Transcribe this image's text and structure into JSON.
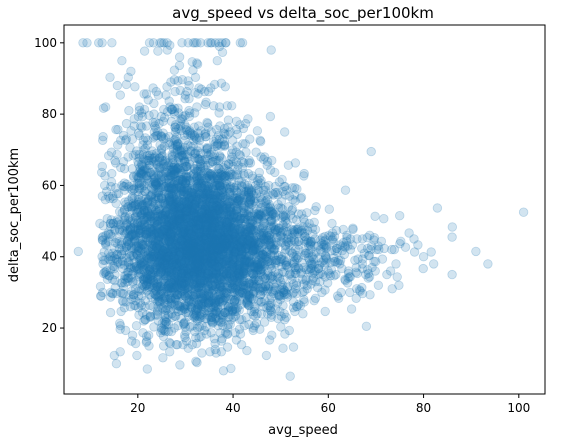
{
  "chart_data": {
    "type": "scatter",
    "title": "avg_speed vs delta_soc_per100km",
    "xlabel": "avg_speed",
    "ylabel": "delta_soc_per100km",
    "xlim": [
      4.5,
      105.5
    ],
    "ylim": [
      1.5,
      105
    ],
    "xticks": [
      20,
      40,
      60,
      80,
      100
    ],
    "yticks": [
      20,
      40,
      60,
      80,
      100
    ],
    "grid": false,
    "marker_color": "#1f77b4",
    "marker_alpha": 0.2,
    "cluster": {
      "n_points": 5000,
      "center": [
        33,
        43
      ],
      "note_values_are_estimates": true
    },
    "notable_points": [
      {
        "x": 101,
        "y": 52.5
      },
      {
        "x": 93.5,
        "y": 38
      },
      {
        "x": 91,
        "y": 41.5
      },
      {
        "x": 86,
        "y": 45.5
      },
      {
        "x": 86,
        "y": 35
      },
      {
        "x": 7.5,
        "y": 41.5
      },
      {
        "x": 8.5,
        "y": 100
      },
      {
        "x": 12.5,
        "y": 100
      },
      {
        "x": 25,
        "y": 100
      },
      {
        "x": 32,
        "y": 100
      },
      {
        "x": 37,
        "y": 100
      },
      {
        "x": 42,
        "y": 100
      },
      {
        "x": 48,
        "y": 98
      },
      {
        "x": 52,
        "y": 6.5
      },
      {
        "x": 38,
        "y": 8
      },
      {
        "x": 22,
        "y": 8.5
      },
      {
        "x": 15.5,
        "y": 10
      },
      {
        "x": 68,
        "y": 20.5
      },
      {
        "x": 69,
        "y": 69.5
      },
      {
        "x": 75,
        "y": 51.5
      },
      {
        "x": 80,
        "y": 40
      },
      {
        "x": 78,
        "y": 45
      }
    ]
  }
}
